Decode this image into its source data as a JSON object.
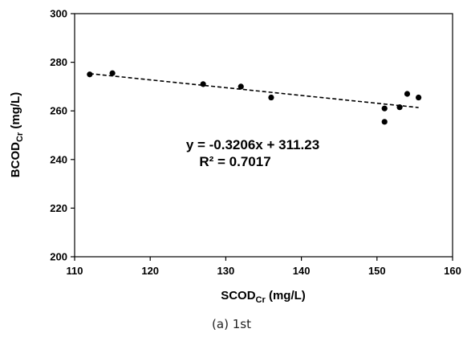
{
  "chart_data": {
    "type": "scatter",
    "xlabel": "SCOD",
    "xlabel_sub": "Cr",
    "xlabel_unit": " (mg/L)",
    "ylabel": "BCOD",
    "ylabel_sub": "Cr",
    "ylabel_unit": " (mg/L)",
    "xlim": [
      110,
      160
    ],
    "ylim": [
      200,
      300
    ],
    "xticks": [
      "110",
      "120",
      "130",
      "140",
      "150",
      "160"
    ],
    "yticks": [
      "200",
      "220",
      "240",
      "260",
      "280",
      "300"
    ],
    "points": [
      {
        "x": 112,
        "y": 275
      },
      {
        "x": 115,
        "y": 275.5
      },
      {
        "x": 127,
        "y": 271
      },
      {
        "x": 132,
        "y": 270
      },
      {
        "x": 136,
        "y": 265.5
      },
      {
        "x": 151,
        "y": 261
      },
      {
        "x": 151,
        "y": 255.5
      },
      {
        "x": 153,
        "y": 261.5
      },
      {
        "x": 154,
        "y": 267
      },
      {
        "x": 155.5,
        "y": 265.5
      }
    ],
    "trendline": {
      "slope": -0.3206,
      "intercept": 311.23,
      "x_range": [
        112,
        155.5
      ],
      "style": "dashed"
    },
    "equation": "y = -0.3206x + 311.23",
    "r_squared": "R² = 0.7017",
    "grid": false,
    "legend": "none"
  },
  "caption": "(a)  1st"
}
